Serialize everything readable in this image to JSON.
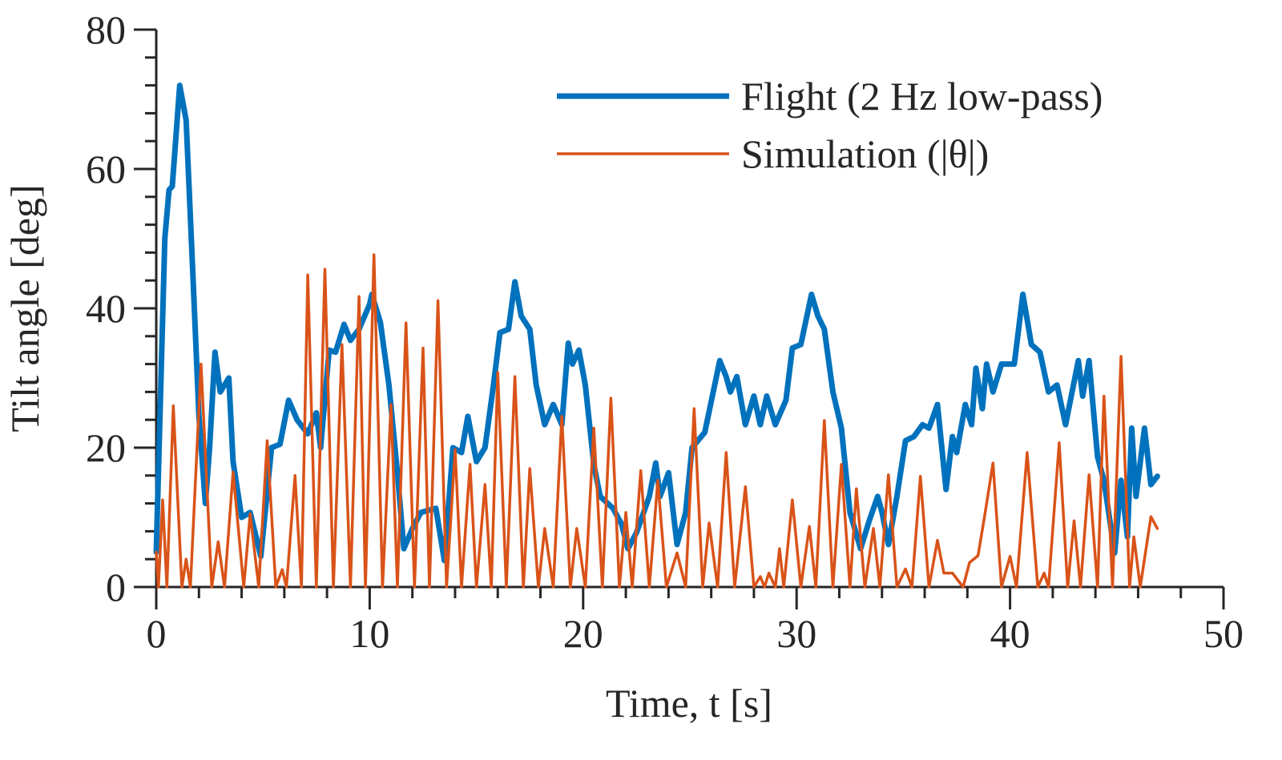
{
  "chart_data": {
    "type": "line",
    "xlabel": "Time, t [s]",
    "ylabel": "Tilt angle [deg]",
    "xlim": [
      0,
      50
    ],
    "xticks": [
      0,
      10,
      20,
      30,
      40,
      50
    ],
    "xminorticks": [
      2,
      4,
      6,
      8,
      12,
      14,
      16,
      18,
      22,
      24,
      26,
      28,
      32,
      34,
      36,
      38,
      42,
      44,
      46,
      48
    ],
    "ylim": [
      0,
      80
    ],
    "yticks": [
      0,
      20,
      40,
      60,
      80
    ],
    "yminorticks": [
      4,
      8,
      12,
      16,
      24,
      28,
      32,
      36,
      44,
      48,
      52,
      56,
      64,
      68,
      72,
      76
    ],
    "grid": false,
    "legend": "upper right",
    "series": [
      {
        "name": "Flight (2 Hz low-pass)",
        "color": "#0072BD",
        "width": 7,
        "x": [
          0,
          0.4,
          0.6,
          0.75,
          1.1,
          1.4,
          1.7,
          2,
          2.3,
          2.5,
          2.75,
          3.0,
          3.4,
          3.6,
          4.0,
          4.4,
          4.9,
          5.4,
          5.8,
          6.2,
          6.6,
          7.1,
          7.5,
          7.7,
          8.1,
          8.4,
          8.8,
          9.1,
          9.5,
          10,
          10.1,
          10.5,
          10.9,
          11.3,
          11.6,
          12,
          12.4,
          13.1,
          13.5,
          13.9,
          14.3,
          14.6,
          15.0,
          15.4,
          15.8,
          16.1,
          16.5,
          16.8,
          17.1,
          17.5,
          17.8,
          18.2,
          18.6,
          19.0,
          19.3,
          19.5,
          19.8,
          20.1,
          20.5,
          20.8,
          21.4,
          21.8,
          22.1,
          22.5,
          23.1,
          23.4,
          23.6,
          24.0,
          24.4,
          24.8,
          25.1,
          25.7,
          26.4,
          26.7,
          26.9,
          27.2,
          27.6,
          28.0,
          28.3,
          28.6,
          29.0,
          29.5,
          29.8,
          30.2,
          30.7,
          31.0,
          31.3,
          31.7,
          32.1,
          32.5,
          33.0,
          33.4,
          33.8,
          34.0,
          34.3,
          34.7,
          35.1,
          35.5,
          35.9,
          36.2,
          36.6,
          37.0,
          37.3,
          37.5,
          37.9,
          38.2,
          38.4,
          38.7,
          38.9,
          39.2,
          39.6,
          40.2,
          40.6,
          41.0,
          41.4,
          41.8,
          42.2,
          42.6,
          43.2,
          43.4,
          43.7,
          44.1,
          44.4,
          44.9,
          45.2,
          45.5,
          45.7,
          45.9,
          46.3,
          46.6,
          46.9
        ],
        "values": [
          5,
          50,
          57,
          57.5,
          72,
          67,
          46,
          24.5,
          12,
          20,
          33.7,
          28,
          30,
          18,
          10,
          10.7,
          4.4,
          20,
          20.5,
          26.8,
          24,
          22,
          25,
          20,
          34,
          33.7,
          37.7,
          35.4,
          37,
          40.6,
          42,
          38,
          29,
          16.4,
          5.5,
          8.4,
          10.7,
          11.3,
          3.8,
          20,
          19.3,
          24.5,
          18,
          20,
          29,
          36.5,
          37,
          43.8,
          38.9,
          37,
          29,
          23.3,
          26.2,
          23.3,
          35,
          32,
          34,
          29,
          17.6,
          13,
          11.3,
          9,
          5.5,
          7.8,
          13,
          17.8,
          13,
          16.4,
          6.1,
          10.7,
          20,
          22.2,
          32.5,
          30.2,
          28,
          30.2,
          23.3,
          27.4,
          23.3,
          27.4,
          23.3,
          26.8,
          34.3,
          34.8,
          42,
          38.9,
          37,
          28,
          22.8,
          10.7,
          5.5,
          9.5,
          13,
          10.7,
          6.1,
          13,
          21,
          21.6,
          23.3,
          22.8,
          26.2,
          14,
          21.6,
          19.3,
          26.2,
          23.3,
          31.4,
          25.6,
          32,
          28,
          32,
          32,
          42,
          34.8,
          33.7,
          28,
          29,
          23.3,
          32.5,
          27.4,
          32.5,
          18.7,
          15.3,
          4.9,
          15.3,
          7.2,
          22.8,
          13,
          22.8,
          14.7,
          15.9
        ]
      },
      {
        "name": "Simulation (|θ|)",
        "color": "#D95319",
        "width": 3.5,
        "x": [
          0,
          0.1,
          0.3,
          0.5,
          0.8,
          1.2,
          1.4,
          1.6,
          2.1,
          2.6,
          2.9,
          3.2,
          3.6,
          4.1,
          4.4,
          4.8,
          5.2,
          5.6,
          5.9,
          6.1,
          6.5,
          6.8,
          7.1,
          7.5,
          7.9,
          8.3,
          8.7,
          9.1,
          9.5,
          9.8,
          10.2,
          10.6,
          11.0,
          11.3,
          11.7,
          12.1,
          12.5,
          12.8,
          13.2,
          13.6,
          14.0,
          14.3,
          14.7,
          15.0,
          15.4,
          15.7,
          16.0,
          16.4,
          16.8,
          17.2,
          17.5,
          17.9,
          18.2,
          18.6,
          19.0,
          19.4,
          19.7,
          20.1,
          20.5,
          20.9,
          21.3,
          21.7,
          22.0,
          22.3,
          22.7,
          23.1,
          23.5,
          23.9,
          24.4,
          24.8,
          25.2,
          25.6,
          25.9,
          26.3,
          26.7,
          27.1,
          27.6,
          28.0,
          28.3,
          28.5,
          28.7,
          29.0,
          29.2,
          29.4,
          29.8,
          30.2,
          30.6,
          30.9,
          31.3,
          31.7,
          32.1,
          32.5,
          32.8,
          33.2,
          33.6,
          33.9,
          34.3,
          34.7,
          35.1,
          35.4,
          35.8,
          36.2,
          36.6,
          36.9,
          37.3,
          37.8,
          38.1,
          38.5,
          38.8,
          39.2,
          39.6,
          40.0,
          40.3,
          40.8,
          41.3,
          41.6,
          41.8,
          42.3,
          42.7,
          43.0,
          43.3,
          43.7,
          44.1,
          44.4,
          44.8,
          45.2,
          45.6,
          45.8,
          46.1,
          46.6,
          46.9
        ],
        "values": [
          5,
          0,
          12.5,
          0,
          26,
          0,
          4,
          0,
          32,
          0,
          6.5,
          0,
          16.5,
          0,
          10.5,
          0,
          21,
          0,
          2.5,
          0,
          16,
          0,
          44.8,
          0,
          45.6,
          0,
          34.8,
          0,
          41.7,
          0,
          47.7,
          0,
          26.2,
          0,
          37.9,
          0,
          34.3,
          0,
          41.1,
          0,
          19.7,
          0,
          17.6,
          0,
          14.7,
          0,
          30.8,
          0,
          30.2,
          0,
          17,
          0,
          8.4,
          0,
          24.5,
          0,
          8.4,
          0,
          22.8,
          0,
          27.1,
          0,
          10.7,
          0,
          16.7,
          0,
          15.3,
          0,
          4.9,
          0,
          25.6,
          0,
          9.2,
          0,
          19.3,
          0,
          14.4,
          0,
          1.5,
          0,
          2,
          0,
          5.5,
          0,
          12.5,
          0,
          8.7,
          0,
          23.9,
          0,
          17.6,
          0,
          14.1,
          0,
          8.4,
          0,
          16.1,
          0,
          2.6,
          0,
          15.9,
          0,
          6.7,
          2,
          2,
          0,
          3.5,
          4.5,
          10,
          17.8,
          0,
          4.4,
          0,
          19.3,
          0,
          2,
          0,
          20.7,
          0,
          9.5,
          0,
          16.1,
          0,
          27.4,
          0,
          33.1,
          0,
          7.2,
          0,
          10.1,
          8.4
        ]
      }
    ]
  }
}
